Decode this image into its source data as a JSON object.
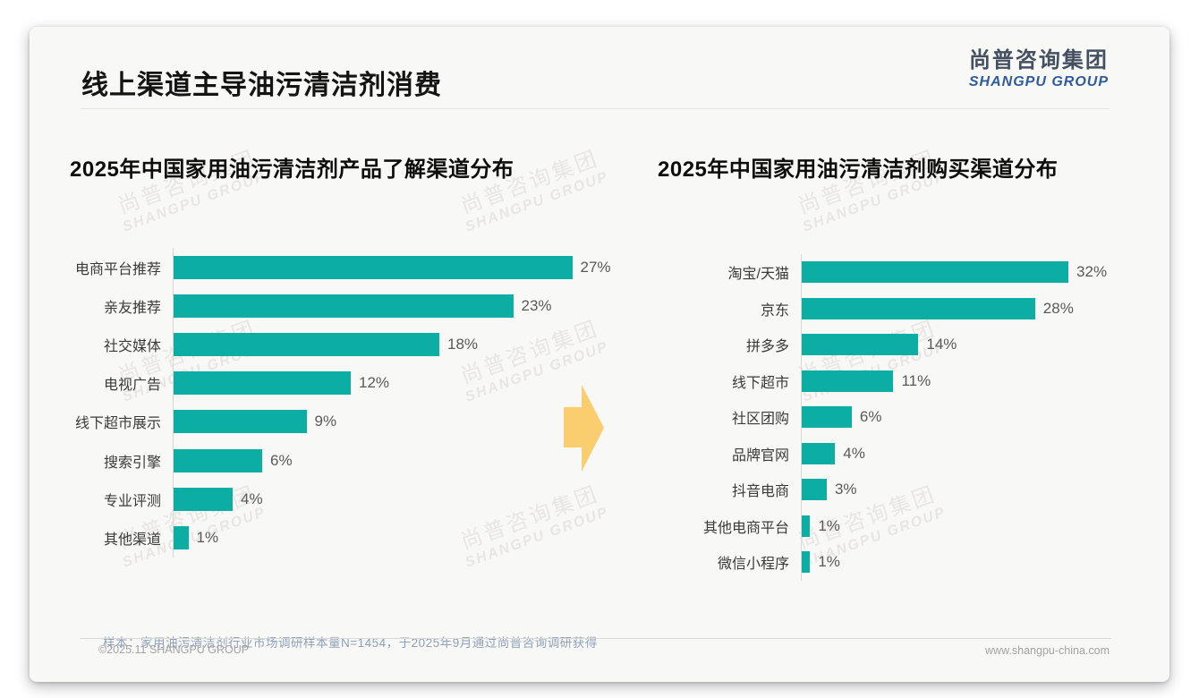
{
  "page": {
    "title": "线上渠道主导油污清洁剂消费",
    "logo": {
      "cn": "尚普咨询集团",
      "en": "SHANGPU GROUP"
    },
    "watermark": {
      "cn": "尚普咨询集团",
      "en": "SHANGPU GROUP"
    },
    "note": "样本：家用油污清洁剂行业市场调研样本量N=1454，于2025年9月通过尚普咨询调研获得",
    "footer": {
      "left": "©2025.11 SHANGPU GROUP",
      "right": "www.shangpu-china.com"
    }
  },
  "colors": {
    "bar_teal": "#0cada2",
    "arrow_yellow": "#facd6e",
    "logo_blue": "#2e5c9b"
  },
  "chart_data": [
    {
      "type": "bar",
      "orientation": "horizontal",
      "title": "2025年中国家用油污清洁剂产品了解渠道分布",
      "categories": [
        "电商平台推荐",
        "亲友推荐",
        "社交媒体",
        "电视广告",
        "线下超市展示",
        "搜索引擎",
        "专业评测",
        "其他渠道"
      ],
      "values": [
        27,
        23,
        18,
        12,
        9,
        6,
        4,
        1
      ],
      "value_labels": [
        "27%",
        "23%",
        "18%",
        "12%",
        "9%",
        "6%",
        "4%",
        "1%"
      ],
      "unit": "%",
      "xlim": [
        0,
        30
      ],
      "grid": false,
      "legend": false
    },
    {
      "type": "bar",
      "orientation": "horizontal",
      "title": "2025年中国家用油污清洁剂购买渠道分布",
      "categories": [
        "淘宝/天猫",
        "京东",
        "拼多多",
        "线下超市",
        "社区团购",
        "品牌官网",
        "抖音电商",
        "其他电商平台",
        "微信小程序"
      ],
      "values": [
        32,
        28,
        14,
        11,
        6,
        4,
        3,
        1,
        1
      ],
      "value_labels": [
        "32%",
        "28%",
        "14%",
        "11%",
        "6%",
        "4%",
        "3%",
        "1%",
        "1%"
      ],
      "unit": "%",
      "xlim": [
        0,
        35
      ],
      "grid": false,
      "legend": false
    }
  ]
}
